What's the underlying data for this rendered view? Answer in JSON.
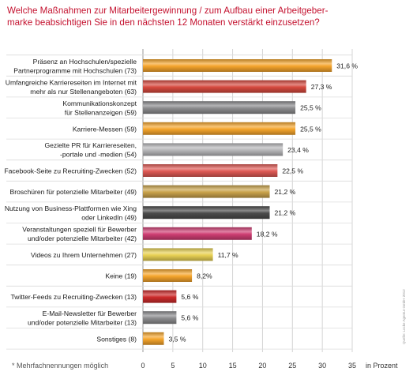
{
  "chart_data": {
    "type": "bar",
    "orientation": "horizontal",
    "title": "Welche Maßnahmen zur Mitarbeitergewinnung / zum Aufbau einer Arbeitgebermarke beabsichtigen Sie in den nächsten 12 Monaten verstärkt einzusetzen?",
    "title_lines": [
      "Welche Maßnahmen zur Mitarbeitergewinnung / zum Aufbau einer Arbeitgeber-",
      "marke beabsichtigen Sie in den nächsten 12 Monaten verstärkt einzusetzen?"
    ],
    "xlabel": "in Prozent",
    "footnote": "* Mehrfachnennungen möglich",
    "source": "Quelle: Locke Agentur GmbH 2012",
    "xlim": [
      0,
      35
    ],
    "xticks": [
      0,
      5,
      10,
      15,
      20,
      25,
      30,
      35
    ],
    "grid": true,
    "categories": [
      [
        "Präsenz an Hochschulen/spezielle",
        "Partnerprogramme mit Hochschulen (73)"
      ],
      [
        "Umfangreiche Karriereseiten im Internet mit",
        "mehr als nur Stellenangeboten (63)"
      ],
      [
        "Kommunikationskonzept",
        "für Stellenanzeigen (59)"
      ],
      [
        "Karriere-Messen (59)"
      ],
      [
        "Gezielte PR für Karriereseiten,",
        "-portale und -medien (54)"
      ],
      [
        "Facebook-Seite zu Recruiting-Zwecken (52)"
      ],
      [
        "Broschüren für potenzielle Mitarbeiter (49)"
      ],
      [
        "Nutzung von Business-Plattformen wie Xing",
        "oder LinkedIn (49)"
      ],
      [
        "Veranstaltungen speziell für Bewerber",
        "und/oder potenzielle Mitarbeiter (42)"
      ],
      [
        "Videos zu Ihrem Unternehmen (27)"
      ],
      [
        "Keine (19)"
      ],
      [
        "Twitter-Feeds zu Recruiting-Zwecken (13)"
      ],
      [
        "E-Mail-Newsletter für Bewerber",
        "und/oder potenzielle Mitarbeiter (13)"
      ],
      [
        "Sonstiges (8)"
      ]
    ],
    "values": [
      31.6,
      27.3,
      25.5,
      25.5,
      23.4,
      22.5,
      21.2,
      21.2,
      18.2,
      11.7,
      8.2,
      5.6,
      5.6,
      3.5
    ],
    "value_labels": [
      "31,6 %",
      "27,3 %",
      "25,5 %",
      "25,5 %",
      "23,4 %",
      "22,5 %",
      "21,2 %",
      "21,2 %",
      "18,2 %",
      "11,7 %",
      "8,2%",
      "5,6 %",
      "5,6 %",
      "3,5 %"
    ],
    "bar_colors": [
      "#f5a52c",
      "#d6493e",
      "#8c8c8e",
      "#f5a52c",
      "#b7b7b9",
      "#e05a55",
      "#c9a24a",
      "#4b4b4b",
      "#cf3e73",
      "#e8d154",
      "#f5a52c",
      "#cc2b2b",
      "#8c8c8e",
      "#f5a52c"
    ]
  }
}
